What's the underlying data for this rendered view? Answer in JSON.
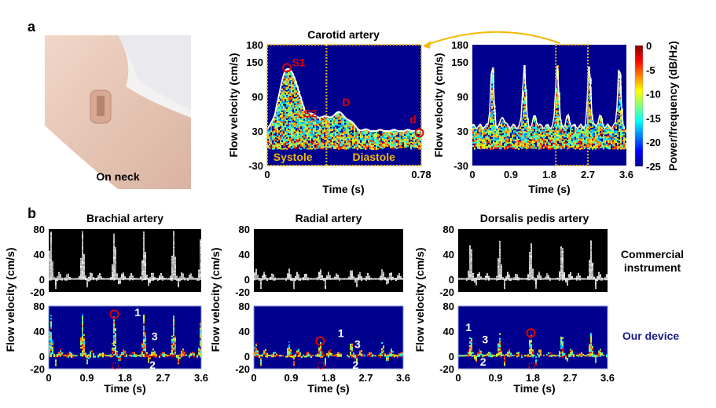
{
  "panel_a": {
    "letter": "a",
    "photo_caption": "On neck",
    "arrow_color": "#f5b800"
  },
  "panel_b": {
    "letter": "b",
    "row_labels": {
      "commercial_line1": "Commercial",
      "commercial_line2": "instrument",
      "device": "Our device"
    },
    "device_label_color": "#1a1a8c"
  },
  "chart_data": [
    {
      "type": "heatmap",
      "title": "Carotid artery",
      "xlabel": "Time (s)",
      "ylabel": "Flow velocity (cm/s)",
      "xlim": [
        0,
        0.78
      ],
      "ylim": [
        -30,
        180
      ],
      "xticks": [
        "0",
        "0.78"
      ],
      "yticks": [
        "180",
        "150",
        "90",
        "30",
        "-30"
      ],
      "phase_divider_s": 0.3,
      "phases": [
        "Systole",
        "Diastole"
      ],
      "annotations": [
        {
          "label": "S1",
          "t": 0.1,
          "v": 140
        },
        {
          "label": "S2",
          "t": 0.29,
          "v": 40
        },
        {
          "label": "D",
          "t": 0.36,
          "v": 60
        },
        {
          "label": "d",
          "t": 0.77,
          "v": 27
        }
      ],
      "annotation_color": "#e00000",
      "envelope_color": "#ffffff",
      "frame_color": "#f5b800"
    },
    {
      "type": "heatmap",
      "title": "",
      "xlabel": "Time (s)",
      "ylabel": "Flow velocity (cm/s)",
      "xlim": [
        0,
        3.6
      ],
      "ylim": [
        -30,
        180
      ],
      "xticks": [
        "0",
        "0.9",
        "1.8",
        "2.7",
        "3.6"
      ],
      "yticks": [
        "180",
        "150",
        "90",
        "30",
        "-30"
      ],
      "peak_times_s": [
        0.48,
        1.23,
        2.0,
        2.75,
        3.45
      ],
      "peak_velocity": 150,
      "highlight_window_s": [
        1.95,
        2.7
      ],
      "colorbar": {
        "label": "Power/frequency (dB/Hz)",
        "range": [
          -25,
          0
        ],
        "ticks": [
          "0",
          "-5",
          "-10",
          "-15",
          "-20",
          "-25"
        ],
        "colormap": "jet"
      }
    },
    {
      "type": "heatmap",
      "title": "Brachial artery",
      "xlabel": "Time (s)",
      "ylabel": "Flow velocity (cm/s)",
      "xlim": [
        0,
        3.6
      ],
      "ylim": [
        -20,
        80
      ],
      "xticks": [
        "0",
        "0.9",
        "1.8",
        "2.7",
        "3.6"
      ],
      "yticks": [
        "80",
        "40",
        "0",
        "-20"
      ],
      "peak_times_s": [
        0.05,
        0.8,
        1.55,
        2.25,
        2.95,
        3.6
      ],
      "peak_velocity": 65,
      "annotations": [
        {
          "label": "1",
          "t": 2.1,
          "v": 60
        },
        {
          "label": "2",
          "t": 2.45,
          "v": -15
        },
        {
          "label": "3",
          "t": 2.5,
          "v": 22
        }
      ]
    },
    {
      "type": "heatmap",
      "title": "Radial artery",
      "xlabel": "Time (s)",
      "ylabel": "Flow velocity (cm/s)",
      "xlim": [
        0,
        3.6
      ],
      "ylim": [
        -20,
        80
      ],
      "xticks": [
        "0",
        "0.9",
        "1.8",
        "2.7",
        "3.6"
      ],
      "yticks": [
        "80",
        "40",
        "0",
        "-20"
      ],
      "peak_times_s": [
        0.05,
        0.85,
        1.6,
        2.35,
        3.1
      ],
      "peak_velocity": 22,
      "annotations": [
        {
          "label": "1",
          "t": 2.1,
          "v": 27
        },
        {
          "label": "2",
          "t": 2.45,
          "v": -15
        },
        {
          "label": "3",
          "t": 2.5,
          "v": 13
        }
      ]
    },
    {
      "type": "heatmap",
      "title": "Dorsalis pedis artery",
      "xlabel": "Time (s)",
      "ylabel": "Flow velocity (cm/s)",
      "xlim": [
        0,
        3.6
      ],
      "ylim": [
        -20,
        80
      ],
      "xticks": [
        "0",
        "0.9",
        "1.8",
        "2.7",
        "3.6"
      ],
      "yticks": [
        "80",
        "40",
        "0",
        "-20"
      ],
      "peak_times_s": [
        0.3,
        1.0,
        1.75,
        2.5,
        3.2
      ],
      "peak_velocity": 35,
      "annotations": [
        {
          "label": "1",
          "t": 0.25,
          "v": 40
        },
        {
          "label": "2",
          "t": 0.6,
          "v": -10
        },
        {
          "label": "3",
          "t": 0.65,
          "v": 18
        }
      ]
    }
  ]
}
